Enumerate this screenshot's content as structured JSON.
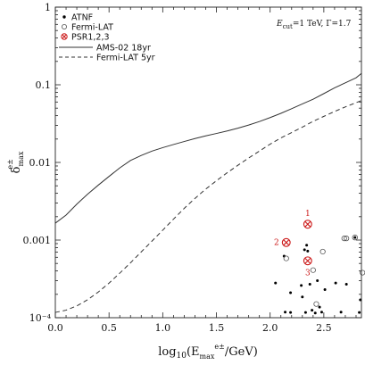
{
  "chart_data": {
    "type": "scatter",
    "xlabel": "log₁₀(E_max^{e±}/GeV)",
    "ylabel": "δ^{e±}_max",
    "yscale": "log",
    "xlim": [
      0.0,
      2.85
    ],
    "ylim": [
      0.0001,
      1
    ],
    "x_ticks": [
      "0.0",
      "0.5",
      "1.0",
      "1.5",
      "2.0",
      "2.5"
    ],
    "y_ticks": [
      "10⁻⁴",
      "0.001",
      "0.01",
      "0.1",
      "1"
    ],
    "annotation": "E_cut=1 TeV, Γ=1.7",
    "legend_position": "top-left",
    "series": [
      {
        "name": "ATNF",
        "kind": "points",
        "marker": "filled-dot",
        "color": "#000000",
        "points": [
          [
            2.13,
            0.00062
          ],
          [
            2.32,
            0.00075
          ],
          [
            2.34,
            0.00086
          ],
          [
            2.35,
            0.00072
          ],
          [
            2.05,
            0.00028
          ],
          [
            2.19,
            0.00021
          ],
          [
            2.29,
            0.00026
          ],
          [
            2.37,
            0.00027
          ],
          [
            2.44,
            0.0003
          ],
          [
            2.51,
            0.00023
          ],
          [
            2.61,
            0.00028
          ],
          [
            2.71,
            0.00027
          ],
          [
            2.84,
            0.00017
          ],
          [
            2.3,
            0.000185
          ],
          [
            2.46,
            0.000137
          ],
          [
            2.14,
            0.000118
          ],
          [
            2.19,
            0.000117
          ],
          [
            2.33,
            0.000117
          ],
          [
            2.39,
            0.000125
          ],
          [
            2.42,
            0.000115
          ],
          [
            2.48,
            0.000118
          ],
          [
            2.66,
            0.000118
          ],
          [
            2.83,
            0.000117
          ],
          [
            2.79,
            0.00108
          ]
        ]
      },
      {
        "name": "Fermi-LAT",
        "kind": "points",
        "marker": "open-circle",
        "color": "#555555",
        "points": [
          [
            2.15,
            0.00058
          ],
          [
            2.4,
            0.00041
          ],
          [
            2.49,
            0.00071
          ],
          [
            2.43,
            0.00015
          ],
          [
            2.69,
            0.00105
          ],
          [
            2.71,
            0.00105
          ],
          [
            2.86,
            0.00038
          ]
        ]
      },
      {
        "name": "PSR1,2,3",
        "kind": "points",
        "marker": "circled-x",
        "color": "#cc1a1a",
        "points": [
          [
            2.35,
            0.0016
          ],
          [
            2.15,
            0.00093
          ],
          [
            2.35,
            0.00054
          ]
        ],
        "labels": [
          "1",
          "2",
          "3"
        ]
      },
      {
        "name": "AMS-02 18yr",
        "kind": "line",
        "style": "solid",
        "color": "#333333",
        "points": [
          [
            0.0,
            0.00165
          ],
          [
            0.1,
            0.0021
          ],
          [
            0.2,
            0.0029
          ],
          [
            0.3,
            0.0039
          ],
          [
            0.4,
            0.0051
          ],
          [
            0.5,
            0.0066
          ],
          [
            0.6,
            0.0085
          ],
          [
            0.7,
            0.0106
          ],
          [
            0.8,
            0.0123
          ],
          [
            0.9,
            0.014
          ],
          [
            1.0,
            0.0155
          ],
          [
            1.1,
            0.017
          ],
          [
            1.2,
            0.0186
          ],
          [
            1.3,
            0.0203
          ],
          [
            1.4,
            0.022
          ],
          [
            1.5,
            0.0236
          ],
          [
            1.6,
            0.0254
          ],
          [
            1.7,
            0.0276
          ],
          [
            1.8,
            0.0303
          ],
          [
            1.9,
            0.0336
          ],
          [
            2.0,
            0.0378
          ],
          [
            2.1,
            0.0429
          ],
          [
            2.2,
            0.0492
          ],
          [
            2.3,
            0.0567
          ],
          [
            2.4,
            0.0652
          ],
          [
            2.5,
            0.077
          ],
          [
            2.6,
            0.0912
          ],
          [
            2.7,
            0.106
          ],
          [
            2.8,
            0.123
          ],
          [
            2.85,
            0.14
          ]
        ]
      },
      {
        "name": "Fermi-LAT 5yr",
        "kind": "line",
        "style": "dashed",
        "color": "#333333",
        "points": [
          [
            0.0,
            0.000117
          ],
          [
            0.1,
            0.000125
          ],
          [
            0.2,
            0.000142
          ],
          [
            0.3,
            0.00017
          ],
          [
            0.4,
            0.000214
          ],
          [
            0.5,
            0.000279
          ],
          [
            0.6,
            0.000375
          ],
          [
            0.7,
            0.000509
          ],
          [
            0.8,
            0.000704
          ],
          [
            0.9,
            0.00097
          ],
          [
            1.0,
            0.00134
          ],
          [
            1.1,
            0.00186
          ],
          [
            1.2,
            0.00256
          ],
          [
            1.3,
            0.00344
          ],
          [
            1.4,
            0.00453
          ],
          [
            1.5,
            0.00581
          ],
          [
            1.6,
            0.00736
          ],
          [
            1.7,
            0.00919
          ],
          [
            1.8,
            0.0114
          ],
          [
            1.9,
            0.014
          ],
          [
            2.0,
            0.0172
          ],
          [
            2.1,
            0.0207
          ],
          [
            2.2,
            0.0242
          ],
          [
            2.3,
            0.0285
          ],
          [
            2.4,
            0.0338
          ],
          [
            2.5,
            0.0392
          ],
          [
            2.6,
            0.0453
          ],
          [
            2.7,
            0.0519
          ],
          [
            2.8,
            0.0588
          ],
          [
            2.85,
            0.0628
          ]
        ]
      }
    ]
  }
}
